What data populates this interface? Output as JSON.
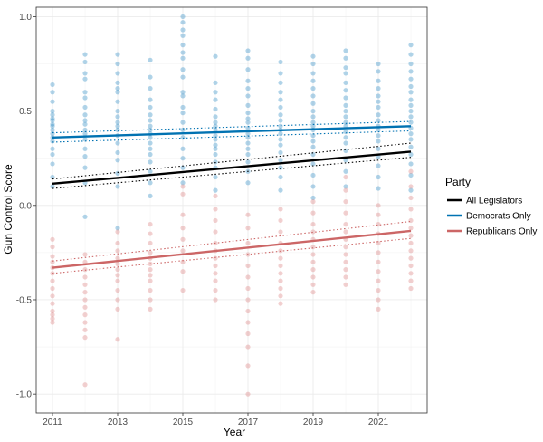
{
  "chart_data": {
    "type": "scatter",
    "title": "",
    "xlabel": "Year",
    "ylabel": "Gun Control Score",
    "xlim": [
      2010.5,
      2022.5
    ],
    "ylim": [
      -1.1,
      1.05
    ],
    "x_ticks": [
      "2011",
      "2013",
      "2015",
      "2017",
      "2019",
      "2021"
    ],
    "y_ticks": [
      "-1.0",
      "-0.5",
      "0.0",
      "0.5",
      "1.0"
    ],
    "legend": {
      "title": "Party",
      "position": "right",
      "entries": [
        {
          "label": "All Legislators",
          "color": "#000000"
        },
        {
          "label": "Democrats Only",
          "color": "#0072B2"
        },
        {
          "label": "Republicans Only",
          "color": "#CC6666"
        }
      ]
    },
    "series": [
      {
        "name": "Democrats Only",
        "color": "#0072B2",
        "points": [
          {
            "year": 2011,
            "scores": [
              0.64,
              0.6,
              0.55,
              0.5,
              0.48,
              0.46,
              0.45,
              0.43,
              0.42,
              0.4,
              0.38,
              0.36,
              0.34,
              0.3,
              0.27,
              0.22,
              0.15,
              0.1
            ]
          },
          {
            "year": 2012,
            "scores": [
              0.8,
              0.76,
              0.7,
              0.67,
              0.6,
              0.57,
              0.52,
              0.48,
              0.45,
              0.43,
              0.4,
              0.38,
              0.35,
              0.3,
              0.26,
              0.2,
              0.12,
              -0.06
            ]
          },
          {
            "year": 2013,
            "scores": [
              0.8,
              0.75,
              0.7,
              0.65,
              0.62,
              0.6,
              0.55,
              0.5,
              0.47,
              0.44,
              0.42,
              0.4,
              0.37,
              0.33,
              0.28,
              0.24,
              0.17,
              0.1,
              -0.12
            ]
          },
          {
            "year": 2014,
            "scores": [
              0.77,
              0.68,
              0.62,
              0.56,
              0.52,
              0.48,
              0.45,
              0.42,
              0.4,
              0.38,
              0.36,
              0.33,
              0.3,
              0.27,
              0.23,
              0.18,
              0.12,
              0.05
            ]
          },
          {
            "year": 2015,
            "scores": [
              1.0,
              0.97,
              0.93,
              0.9,
              0.85,
              0.81,
              0.78,
              0.72,
              0.68,
              0.6,
              0.58,
              0.52,
              0.49,
              0.44,
              0.4,
              0.36,
              0.3,
              0.25,
              0.2,
              0.12
            ]
          },
          {
            "year": 2016,
            "scores": [
              0.79,
              0.65,
              0.6,
              0.56,
              0.51,
              0.47,
              0.44,
              0.42,
              0.4,
              0.37,
              0.35,
              0.32,
              0.3,
              0.27,
              0.23,
              0.2,
              0.15,
              0.08
            ]
          },
          {
            "year": 2017,
            "scores": [
              0.82,
              0.78,
              0.72,
              0.66,
              0.62,
              0.58,
              0.53,
              0.49,
              0.46,
              0.44,
              0.41,
              0.38,
              0.36,
              0.33,
              0.3,
              0.27,
              0.23,
              0.18,
              0.12
            ]
          },
          {
            "year": 2018,
            "scores": [
              0.76,
              0.7,
              0.65,
              0.6,
              0.56,
              0.52,
              0.48,
              0.45,
              0.42,
              0.4,
              0.38,
              0.35,
              0.32,
              0.28,
              0.24,
              0.2,
              0.15,
              0.08
            ]
          },
          {
            "year": 2019,
            "scores": [
              0.79,
              0.75,
              0.7,
              0.66,
              0.62,
              0.58,
              0.54,
              0.5,
              0.47,
              0.44,
              0.42,
              0.4,
              0.37,
              0.34,
              0.31,
              0.27,
              0.22,
              0.16,
              0.1,
              0.04
            ]
          },
          {
            "year": 2020,
            "scores": [
              0.82,
              0.78,
              0.73,
              0.7,
              0.65,
              0.61,
              0.57,
              0.53,
              0.5,
              0.47,
              0.44,
              0.42,
              0.39,
              0.36,
              0.33,
              0.29,
              0.24,
              0.18,
              0.1
            ]
          },
          {
            "year": 2021,
            "scores": [
              0.75,
              0.71,
              0.66,
              0.62,
              0.58,
              0.55,
              0.52,
              0.48,
              0.45,
              0.42,
              0.4,
              0.37,
              0.34,
              0.3,
              0.26,
              0.21,
              0.15,
              0.09
            ]
          },
          {
            "year": 2022,
            "scores": [
              0.85,
              0.8,
              0.75,
              0.71,
              0.67,
              0.63,
              0.6,
              0.56,
              0.53,
              0.5,
              0.47,
              0.44,
              0.41,
              0.38,
              0.35,
              0.31,
              0.27,
              0.22,
              0.16,
              0.08
            ]
          }
        ]
      },
      {
        "name": "Republicans Only",
        "color": "#CC6666",
        "points": [
          {
            "year": 2011,
            "scores": [
              -0.18,
              -0.22,
              -0.27,
              -0.3,
              -0.33,
              -0.36,
              -0.4,
              -0.44,
              -0.48,
              -0.52,
              -0.56,
              -0.58,
              -0.6,
              -0.62
            ]
          },
          {
            "year": 2012,
            "scores": [
              -0.26,
              -0.3,
              -0.34,
              -0.38,
              -0.42,
              -0.46,
              -0.5,
              -0.54,
              -0.58,
              -0.62,
              -0.66,
              -0.7,
              -0.95
            ]
          },
          {
            "year": 2013,
            "scores": [
              -0.14,
              -0.2,
              -0.24,
              -0.28,
              -0.31,
              -0.34,
              -0.37,
              -0.4,
              -0.45,
              -0.5,
              -0.55,
              -0.71
            ]
          },
          {
            "year": 2014,
            "scores": [
              -0.1,
              -0.15,
              -0.2,
              -0.25,
              -0.28,
              -0.31,
              -0.34,
              -0.37,
              -0.4,
              -0.45,
              -0.5,
              -0.55
            ]
          },
          {
            "year": 2015,
            "scores": [
              0.1,
              0.06,
              -0.05,
              -0.12,
              -0.18,
              -0.24,
              -0.3,
              -0.35,
              -0.45
            ]
          },
          {
            "year": 2016,
            "scores": [
              0.05,
              -0.02,
              -0.08,
              -0.14,
              -0.2,
              -0.24,
              -0.28,
              -0.32,
              -0.36,
              -0.4,
              -0.45,
              -0.5
            ]
          },
          {
            "year": 2017,
            "scores": [
              -0.05,
              -0.12,
              -0.2,
              -0.26,
              -0.32,
              -0.38,
              -0.44,
              -0.5,
              -0.56,
              -0.62,
              -0.68,
              -0.75,
              -0.85,
              -1.0
            ]
          },
          {
            "year": 2018,
            "scores": [
              -0.02,
              -0.08,
              -0.14,
              -0.2,
              -0.24,
              -0.28,
              -0.32,
              -0.36,
              -0.4,
              -0.44,
              -0.48,
              -0.52
            ]
          },
          {
            "year": 2019,
            "scores": [
              0.02,
              -0.04,
              -0.1,
              -0.14,
              -0.18,
              -0.22,
              -0.26,
              -0.3,
              -0.34,
              -0.38,
              -0.42,
              -0.46
            ]
          },
          {
            "year": 2020,
            "scores": [
              0.15,
              0.08,
              0.02,
              -0.04,
              -0.1,
              -0.14,
              -0.18,
              -0.22,
              -0.26,
              -0.3,
              -0.34,
              -0.38,
              -0.42
            ]
          },
          {
            "year": 2021,
            "scores": [
              0.0,
              -0.05,
              -0.1,
              -0.15,
              -0.2,
              -0.25,
              -0.3,
              -0.35,
              -0.4,
              -0.45,
              -0.5,
              -0.55
            ]
          },
          {
            "year": 2022,
            "scores": [
              0.18,
              0.1,
              0.04,
              -0.02,
              -0.08,
              -0.12,
              -0.16,
              -0.2,
              -0.24,
              -0.28,
              -0.32,
              -0.36,
              -0.4,
              -0.44
            ]
          }
        ]
      }
    ],
    "trend_lines": [
      {
        "name": "All Legislators",
        "color": "#000000",
        "start": [
          2011,
          0.115
        ],
        "end": [
          2022,
          0.285
        ],
        "ci_start": [
          0.09,
          0.14
        ],
        "ci_end": [
          0.255,
          0.33
        ]
      },
      {
        "name": "Democrats Only",
        "color": "#0072B2",
        "start": [
          2011,
          0.36
        ],
        "end": [
          2022,
          0.42
        ],
        "ci_start": [
          0.335,
          0.385
        ],
        "ci_end": [
          0.395,
          0.445
        ]
      },
      {
        "name": "Republicans Only",
        "color": "#CC6666",
        "start": [
          2011,
          -0.33
        ],
        "end": [
          2022,
          -0.135
        ],
        "ci_start": [
          -0.36,
          -0.295
        ],
        "ci_end": [
          -0.175,
          -0.085
        ]
      }
    ]
  }
}
